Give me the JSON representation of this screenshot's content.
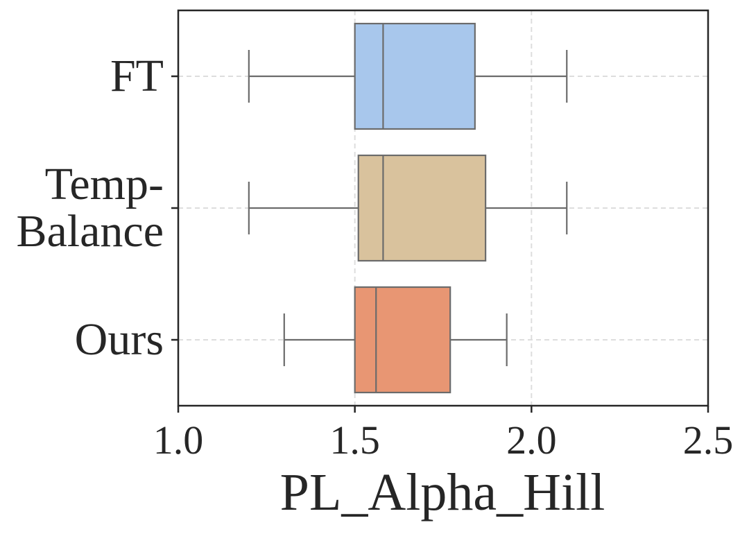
{
  "chart_data": {
    "type": "boxplot",
    "orientation": "horizontal",
    "title": "",
    "xlabel": "PL_Alpha_Hill",
    "ylabel": "",
    "xlim": [
      1.0,
      2.5
    ],
    "xticks": [
      "1.0",
      "1.5",
      "2.0",
      "2.5"
    ],
    "grid": true,
    "categories": [
      {
        "label_lines": [
          "FT"
        ]
      },
      {
        "label_lines": [
          "Temp-",
          "Balance"
        ]
      },
      {
        "label_lines": [
          "Ours"
        ]
      }
    ],
    "series": [
      {
        "name": "FT",
        "whisker_low": 1.2,
        "q1": 1.5,
        "median": 1.58,
        "q3": 1.84,
        "whisker_high": 2.1,
        "color": "#a8c7ec"
      },
      {
        "name": "Temp-Balance",
        "whisker_low": 1.2,
        "q1": 1.51,
        "median": 1.58,
        "q3": 1.87,
        "whisker_high": 2.1,
        "color": "#d9c29d"
      },
      {
        "name": "Ours",
        "whisker_low": 1.3,
        "q1": 1.5,
        "median": 1.56,
        "q3": 1.77,
        "whisker_high": 1.93,
        "color": "#e89673"
      }
    ]
  }
}
